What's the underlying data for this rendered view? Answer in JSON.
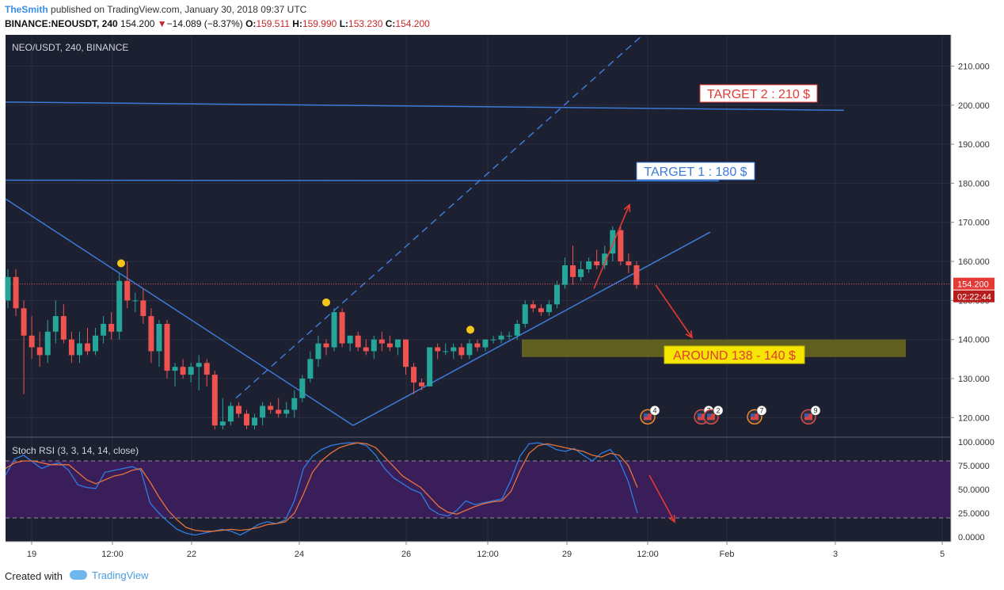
{
  "header": {
    "author": "TheSmith",
    "published": "published on TradingView.com, January 30, 2018 09:37 UTC",
    "symbol": "BINANCE:NEOUSDT, 240",
    "price": "154.200",
    "change": "−14.089 (−8.37%)",
    "o_label": "O:",
    "o_value": "159.511",
    "h_label": "H:",
    "h_value": "159.990",
    "l_label": "L:",
    "l_value": "153.230",
    "c_label": "C:",
    "c_value": "154.200"
  },
  "footer": {
    "created_with": "Created with",
    "brand": "TradingView"
  },
  "colors": {
    "background": "#1c2030",
    "up": "#26a69a",
    "down": "#ef5350",
    "trendline": "#3d7bd9",
    "annotation_arrow": "#e53935",
    "zone": "#6b6b1f",
    "rsi_band": "#3b1f5c",
    "stoch_k": "#2f7de1",
    "stoch_d": "#e8733a"
  },
  "chart_data": [
    {
      "type": "candlestick",
      "title": "NEO/USDT, 240, BINANCE",
      "x_tick_labels": [
        "19",
        "12:00",
        "22",
        "24",
        "26",
        "12:00",
        "29",
        "12:00",
        "Feb",
        "3",
        "5"
      ],
      "y_tick_labels": [
        "120.000",
        "130.000",
        "140.000",
        "150.000",
        "160.000",
        "170.000",
        "180.000",
        "190.000",
        "200.000",
        "210.000"
      ],
      "ylim": [
        115,
        218
      ],
      "last_price_label": "154.200",
      "countdown_label": "02:22:44",
      "candles": [
        {
          "o": 150,
          "h": 158,
          "l": 148,
          "c": 156
        },
        {
          "o": 156,
          "h": 158,
          "l": 146,
          "c": 148
        },
        {
          "o": 148,
          "h": 150,
          "l": 126,
          "c": 141
        },
        {
          "o": 141,
          "h": 146,
          "l": 135,
          "c": 138
        },
        {
          "o": 138,
          "h": 142,
          "l": 133,
          "c": 136
        },
        {
          "o": 136,
          "h": 145,
          "l": 134,
          "c": 142
        },
        {
          "o": 142,
          "h": 150,
          "l": 139,
          "c": 146
        },
        {
          "o": 146,
          "h": 149,
          "l": 139,
          "c": 140
        },
        {
          "o": 140,
          "h": 142,
          "l": 134,
          "c": 136
        },
        {
          "o": 136,
          "h": 142,
          "l": 134,
          "c": 139
        },
        {
          "o": 139,
          "h": 143,
          "l": 136,
          "c": 137
        },
        {
          "o": 137,
          "h": 143,
          "l": 136,
          "c": 141
        },
        {
          "o": 141,
          "h": 146,
          "l": 139,
          "c": 144
        },
        {
          "o": 144,
          "h": 147,
          "l": 140,
          "c": 142
        },
        {
          "o": 142,
          "h": 157,
          "l": 140,
          "c": 155
        },
        {
          "o": 155,
          "h": 160,
          "l": 148,
          "c": 150
        },
        {
          "o": 150,
          "h": 152,
          "l": 147,
          "c": 150
        },
        {
          "o": 150,
          "h": 153,
          "l": 144,
          "c": 146
        },
        {
          "o": 146,
          "h": 148,
          "l": 134,
          "c": 137
        },
        {
          "o": 137,
          "h": 145,
          "l": 133,
          "c": 144
        },
        {
          "o": 144,
          "h": 145,
          "l": 130,
          "c": 132
        },
        {
          "o": 132,
          "h": 134,
          "l": 128,
          "c": 133
        },
        {
          "o": 133,
          "h": 135,
          "l": 130,
          "c": 131
        },
        {
          "o": 131,
          "h": 134,
          "l": 129,
          "c": 133
        },
        {
          "o": 133,
          "h": 136,
          "l": 127,
          "c": 134
        },
        {
          "o": 134,
          "h": 135,
          "l": 128,
          "c": 131
        },
        {
          "o": 131,
          "h": 132,
          "l": 117,
          "c": 118
        },
        {
          "o": 118,
          "h": 125,
          "l": 117,
          "c": 119
        },
        {
          "o": 119,
          "h": 124,
          "l": 118,
          "c": 123
        },
        {
          "o": 123,
          "h": 124,
          "l": 120,
          "c": 121
        },
        {
          "o": 121,
          "h": 122,
          "l": 117,
          "c": 118
        },
        {
          "o": 118,
          "h": 121,
          "l": 117,
          "c": 120
        },
        {
          "o": 120,
          "h": 124,
          "l": 118,
          "c": 123
        },
        {
          "o": 123,
          "h": 124,
          "l": 121,
          "c": 122
        },
        {
          "o": 122,
          "h": 125,
          "l": 120,
          "c": 121
        },
        {
          "o": 121,
          "h": 124,
          "l": 120,
          "c": 122
        },
        {
          "o": 122,
          "h": 127,
          "l": 120,
          "c": 125
        },
        {
          "o": 125,
          "h": 131,
          "l": 124,
          "c": 130
        },
        {
          "o": 130,
          "h": 137,
          "l": 129,
          "c": 135
        },
        {
          "o": 135,
          "h": 141,
          "l": 133,
          "c": 139
        },
        {
          "o": 139,
          "h": 140,
          "l": 136,
          "c": 138
        },
        {
          "o": 138,
          "h": 148,
          "l": 137,
          "c": 147
        },
        {
          "o": 147,
          "h": 148,
          "l": 138,
          "c": 139
        },
        {
          "o": 139,
          "h": 141,
          "l": 137,
          "c": 141
        },
        {
          "o": 141,
          "h": 142,
          "l": 137,
          "c": 138
        },
        {
          "o": 138,
          "h": 140,
          "l": 136,
          "c": 137
        },
        {
          "o": 137,
          "h": 141,
          "l": 135,
          "c": 140
        },
        {
          "o": 140,
          "h": 142,
          "l": 137,
          "c": 139
        },
        {
          "o": 139,
          "h": 141,
          "l": 137,
          "c": 138
        },
        {
          "o": 138,
          "h": 140,
          "l": 136,
          "c": 140
        },
        {
          "o": 140,
          "h": 140,
          "l": 131,
          "c": 133
        },
        {
          "o": 133,
          "h": 134,
          "l": 126,
          "c": 129
        },
        {
          "o": 129,
          "h": 130,
          "l": 127,
          "c": 128
        },
        {
          "o": 128,
          "h": 138,
          "l": 128,
          "c": 138
        },
        {
          "o": 138,
          "h": 139,
          "l": 135,
          "c": 137
        },
        {
          "o": 137,
          "h": 139,
          "l": 136,
          "c": 137
        },
        {
          "o": 137,
          "h": 139,
          "l": 135,
          "c": 138
        },
        {
          "o": 138,
          "h": 139,
          "l": 135,
          "c": 136
        },
        {
          "o": 136,
          "h": 140,
          "l": 135,
          "c": 139
        },
        {
          "o": 139,
          "h": 140,
          "l": 137,
          "c": 138
        },
        {
          "o": 138,
          "h": 140,
          "l": 137,
          "c": 140
        },
        {
          "o": 140,
          "h": 141,
          "l": 139,
          "c": 140
        },
        {
          "o": 140,
          "h": 142,
          "l": 139,
          "c": 141
        },
        {
          "o": 141,
          "h": 142,
          "l": 140,
          "c": 141
        },
        {
          "o": 141,
          "h": 145,
          "l": 140,
          "c": 144
        },
        {
          "o": 144,
          "h": 150,
          "l": 143,
          "c": 149
        },
        {
          "o": 149,
          "h": 150,
          "l": 147,
          "c": 148
        },
        {
          "o": 148,
          "h": 149,
          "l": 146,
          "c": 147
        },
        {
          "o": 147,
          "h": 150,
          "l": 146,
          "c": 149
        },
        {
          "o": 149,
          "h": 155,
          "l": 148,
          "c": 154
        },
        {
          "o": 154,
          "h": 161,
          "l": 153,
          "c": 159
        },
        {
          "o": 159,
          "h": 164,
          "l": 154,
          "c": 156
        },
        {
          "o": 156,
          "h": 160,
          "l": 155,
          "c": 158
        },
        {
          "o": 158,
          "h": 161,
          "l": 157,
          "c": 160
        },
        {
          "o": 160,
          "h": 163,
          "l": 158,
          "c": 159
        },
        {
          "o": 159,
          "h": 164,
          "l": 158,
          "c": 162
        },
        {
          "o": 162,
          "h": 169,
          "l": 160,
          "c": 168
        },
        {
          "o": 168,
          "h": 169,
          "l": 159,
          "c": 160
        },
        {
          "o": 160,
          "h": 162,
          "l": 157,
          "c": 159
        },
        {
          "o": 159,
          "h": 160,
          "l": 153,
          "c": 154
        }
      ],
      "annotations": {
        "target1": "TARGET 1 : 180 $",
        "target2": "TARGET 2 : 210 $",
        "zone": "AROUND 138 - 140 $",
        "event_badges": [
          "4",
          "7",
          "2",
          "7",
          "9"
        ]
      }
    },
    {
      "type": "line",
      "title": "Stoch RSI (3, 3, 14, 14, close)",
      "y_tick_labels": [
        "0.0000",
        "25.0000",
        "50.0000",
        "75.0000",
        "100.0000"
      ],
      "ylim": [
        -5,
        105
      ],
      "series": [
        {
          "values": [
            65,
            82,
            86,
            79,
            72,
            76,
            78,
            70,
            55,
            52,
            51,
            68,
            70,
            72,
            74,
            70,
            36,
            25,
            16,
            8,
            4,
            2,
            4,
            6,
            8,
            6,
            2,
            7,
            13,
            16,
            14,
            18,
            38,
            72,
            85,
            92,
            96,
            98,
            99,
            99,
            96,
            86,
            72,
            62,
            56,
            50,
            46,
            30,
            24,
            22,
            28,
            38,
            34,
            36,
            38,
            40,
            60,
            85,
            98,
            99,
            97,
            92,
            90,
            93,
            86,
            80,
            88,
            92,
            80,
            58,
            25
          ]
        },
        {
          "values": [
            72,
            78,
            80,
            80,
            78,
            76,
            76,
            76,
            68,
            60,
            56,
            60,
            64,
            66,
            70,
            72,
            58,
            42,
            28,
            18,
            10,
            7,
            6,
            6,
            7,
            8,
            7,
            8,
            10,
            13,
            14,
            16,
            25,
            45,
            68,
            80,
            88,
            94,
            97,
            99,
            98,
            94,
            84,
            74,
            64,
            58,
            52,
            42,
            32,
            26,
            24,
            28,
            32,
            35,
            37,
            38,
            48,
            70,
            88,
            96,
            98,
            96,
            94,
            92,
            90,
            86,
            84,
            88,
            86,
            75,
            52
          ]
        }
      ]
    }
  ]
}
